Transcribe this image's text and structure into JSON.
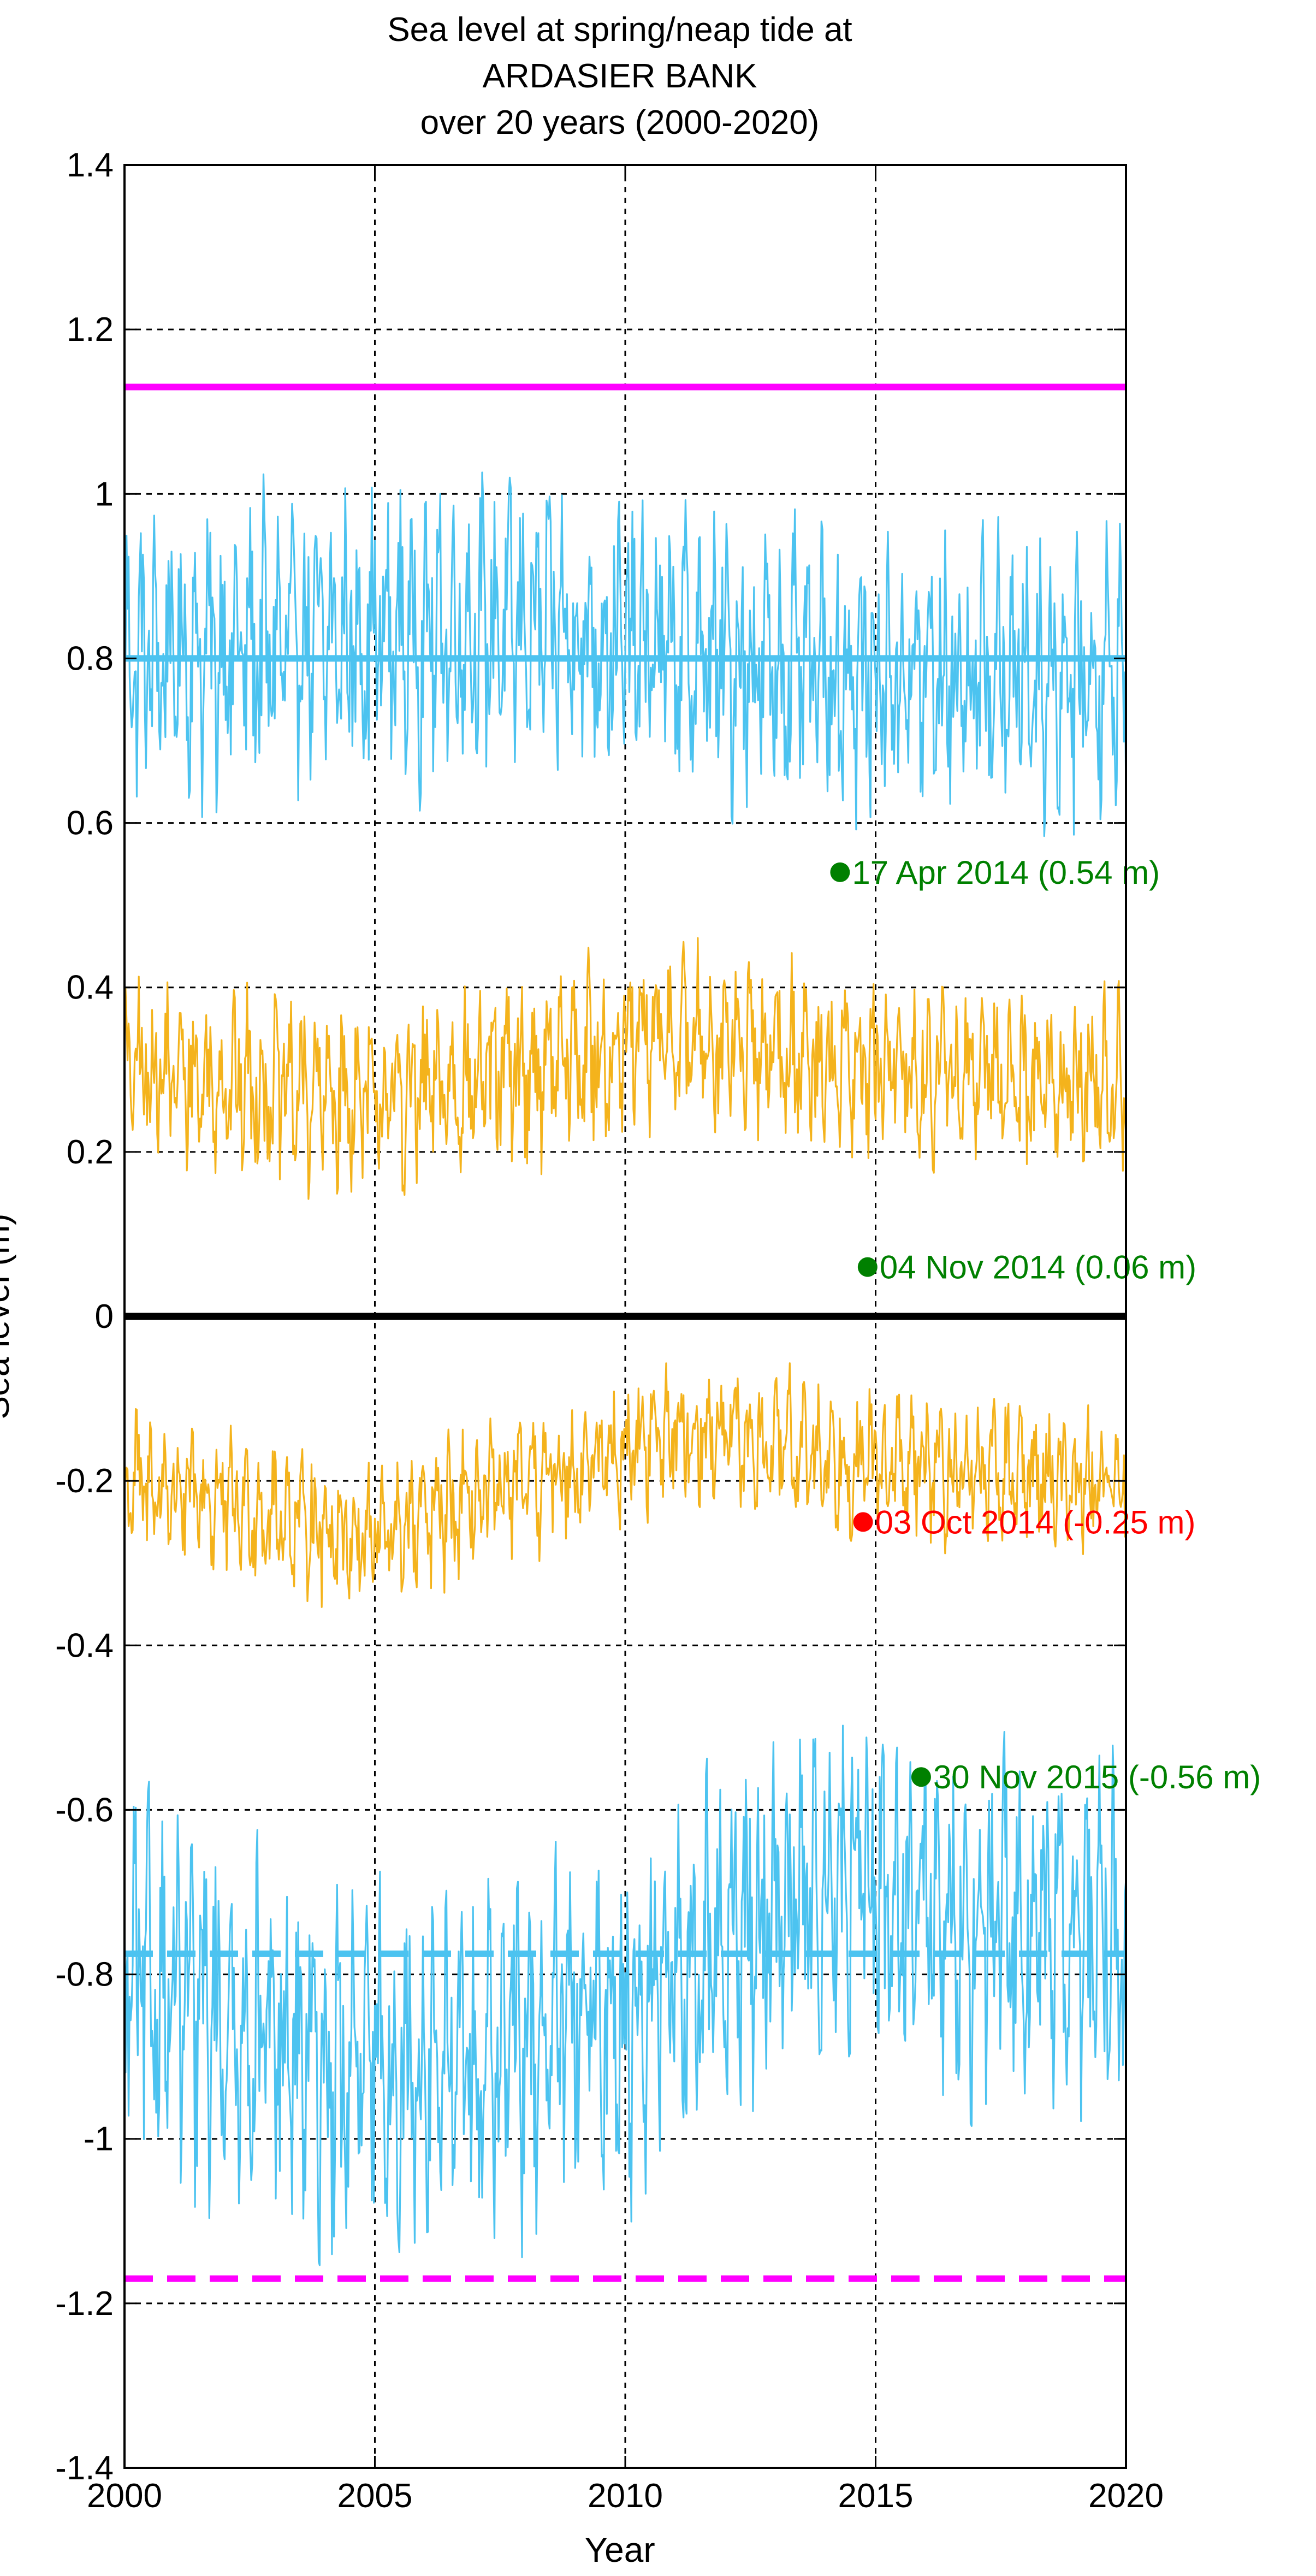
{
  "chart_data": {
    "type": "line",
    "title": [
      "Sea level at spring/neap tide at",
      "ARDASIER BANK",
      "over 20 years (2000-2020)"
    ],
    "xlabel": "Year",
    "ylabel": "Sea level (m)",
    "xlim": [
      2000,
      2020
    ],
    "ylim": [
      -1.4,
      1.4
    ],
    "xticks": [
      2000,
      2005,
      2010,
      2015,
      2020
    ],
    "xtick_labels": [
      "2000",
      "2005",
      "2010",
      "2015",
      "2020"
    ],
    "yticks": [
      -1.4,
      -1.2,
      -1,
      -0.8,
      -0.6,
      -0.4,
      -0.2,
      0,
      0.2,
      0.4,
      0.6,
      0.8,
      1,
      1.2,
      1.4
    ],
    "ytick_labels": [
      "-1.4",
      "-1.2",
      "-1",
      "-0.8",
      "-0.6",
      "-0.4",
      "-0.2",
      "0",
      "0.2",
      "0.4",
      "0.6",
      "0.8",
      "1",
      "1.2",
      "1.4"
    ],
    "grid": true,
    "colors": {
      "spring": "#4cc3f0",
      "neap": "#f4b31c",
      "extreme": "#ff00ff",
      "zero": "#000000",
      "green_marker": "#008000",
      "red_marker": "#ff0000",
      "grid": "#000000"
    },
    "series": [
      {
        "key": "spring_high",
        "color": "#4cc3f0",
        "style": "thin",
        "mean": 0.8,
        "amp": 0.14,
        "min": 0.54,
        "max": 1.12,
        "trend": [
          [
            2000,
            0.0
          ],
          [
            2008,
            0.04
          ],
          [
            2014,
            -0.02
          ],
          [
            2020,
            -0.02
          ]
        ]
      },
      {
        "key": "neap_high",
        "color": "#f4b31c",
        "style": "thin",
        "mean": 0.3,
        "amp": 0.09,
        "min": 0.12,
        "max": 0.56,
        "trend": [
          [
            2000,
            0.0
          ],
          [
            2005,
            -0.04
          ],
          [
            2011,
            0.04
          ],
          [
            2015,
            0.0
          ],
          [
            2020,
            -0.02
          ]
        ]
      },
      {
        "key": "neap_low",
        "color": "#f4b31c",
        "style": "thin",
        "mean": -0.2,
        "amp": 0.07,
        "min": -0.4,
        "max": -0.03,
        "trend": [
          [
            2000,
            0.0
          ],
          [
            2005,
            -0.07
          ],
          [
            2011,
            0.06
          ],
          [
            2015,
            0.02
          ],
          [
            2020,
            0.0
          ]
        ]
      },
      {
        "key": "spring_low",
        "color": "#4cc3f0",
        "style": "thin",
        "mean": -0.8,
        "amp": 0.17,
        "min": -1.17,
        "max": -0.38,
        "trend": [
          [
            2000,
            0.0
          ],
          [
            2004,
            -0.12
          ],
          [
            2006,
            -0.12
          ],
          [
            2010,
            -0.05
          ],
          [
            2014,
            0.12
          ],
          [
            2017,
            0.05
          ],
          [
            2020,
            0.05
          ]
        ]
      }
    ],
    "reference_lines": [
      {
        "key": "mean-spring-high",
        "y": 0.8,
        "color": "#4cc3f0",
        "dash": "solid"
      },
      {
        "key": "mean-spring-low",
        "y": -0.775,
        "color": "#4cc3f0",
        "dash": "dashed"
      },
      {
        "key": "max-level",
        "y": 1.13,
        "color": "#ff00ff",
        "dash": "solid"
      },
      {
        "key": "min-level",
        "y": -1.17,
        "color": "#ff00ff",
        "dash": "dashed"
      },
      {
        "key": "zero",
        "y": 0,
        "color": "#000000",
        "dash": "solid"
      }
    ],
    "markers": [
      {
        "key": "marker-apr-2014",
        "x": 2014.29,
        "y": 0.54,
        "color": "#008000",
        "label": "17 Apr 2014 (0.54 m)"
      },
      {
        "key": "marker-nov-2014",
        "x": 2014.84,
        "y": 0.06,
        "color": "#008000",
        "label": "04 Nov 2014 (0.06 m)"
      },
      {
        "key": "marker-oct-2014",
        "x": 2014.75,
        "y": -0.25,
        "color": "#ff0000",
        "label": "03 Oct 2014 (-0.25 m)"
      },
      {
        "key": "marker-nov-2015",
        "x": 2015.91,
        "y": -0.56,
        "color": "#008000",
        "label": "30 Nov 2015 (-0.56 m)"
      }
    ]
  }
}
